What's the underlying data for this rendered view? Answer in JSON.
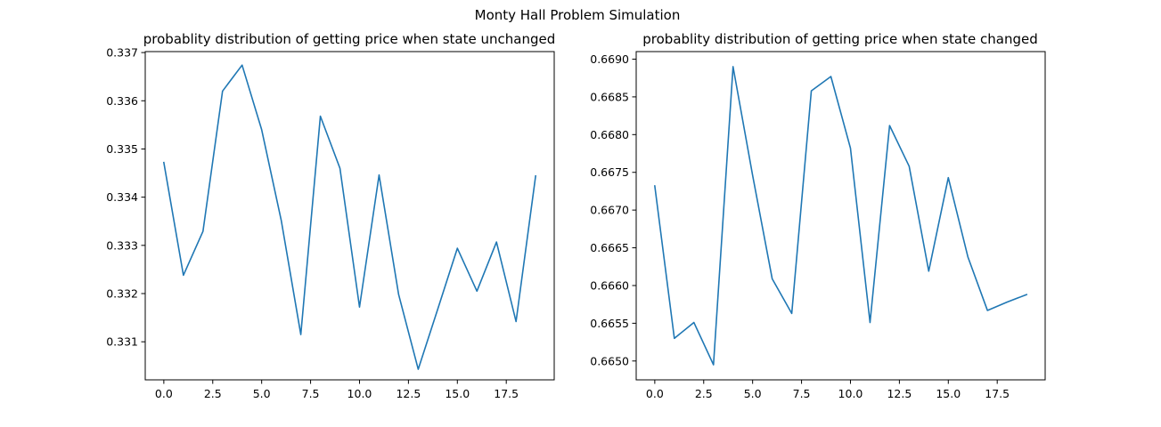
{
  "figure": {
    "suptitle": "Monty Hall Problem Simulation",
    "line_color": "#1f77b4"
  },
  "chart_data": [
    {
      "type": "line",
      "title": "probablity distribution of getting price when state unchanged",
      "xlabel": "",
      "ylabel": "",
      "x": [
        0,
        1,
        2,
        3,
        4,
        5,
        6,
        7,
        8,
        9,
        10,
        11,
        12,
        13,
        14,
        15,
        16,
        17,
        18,
        19
      ],
      "series": [
        {
          "values": [
            0.33472,
            0.33238,
            0.33329,
            0.3362,
            0.33674,
            0.3354,
            0.33352,
            0.33115,
            0.33568,
            0.3346,
            0.33172,
            0.33446,
            0.33198,
            0.33043,
            0.33168,
            0.33294,
            0.33205,
            0.33307,
            0.33142,
            0.33444
          ]
        }
      ],
      "xlim": [
        -0.95,
        19.95
      ],
      "ylim": [
        0.33021,
        0.33702
      ],
      "xticks": [
        0.0,
        2.5,
        5.0,
        7.5,
        10.0,
        12.5,
        15.0,
        17.5
      ],
      "xtick_labels": [
        "0.0",
        "2.5",
        "5.0",
        "7.5",
        "10.0",
        "12.5",
        "15.0",
        "17.5"
      ],
      "yticks": [
        0.331,
        0.332,
        0.333,
        0.334,
        0.335,
        0.336,
        0.337
      ],
      "ytick_labels": [
        "0.331",
        "0.332",
        "0.333",
        "0.334",
        "0.335",
        "0.336",
        "0.337"
      ],
      "grid": false
    },
    {
      "type": "line",
      "title": "probablity distribution of getting price when state changed",
      "xlabel": "",
      "ylabel": "",
      "x": [
        0,
        1,
        2,
        3,
        4,
        5,
        6,
        7,
        8,
        9,
        10,
        11,
        12,
        13,
        14,
        15,
        16,
        17,
        18,
        19
      ],
      "series": [
        {
          "values": [
            0.66732,
            0.6653,
            0.66551,
            0.66495,
            0.6689,
            0.66746,
            0.66609,
            0.66563,
            0.66858,
            0.66877,
            0.66782,
            0.66551,
            0.66812,
            0.66758,
            0.66619,
            0.66743,
            0.66638,
            0.66567,
            0.66578,
            0.66588
          ]
        }
      ],
      "xlim": [
        -0.95,
        19.95
      ],
      "ylim": [
        0.66475,
        0.6691
      ],
      "xticks": [
        0.0,
        2.5,
        5.0,
        7.5,
        10.0,
        12.5,
        15.0,
        17.5
      ],
      "xtick_labels": [
        "0.0",
        "2.5",
        "5.0",
        "7.5",
        "10.0",
        "12.5",
        "15.0",
        "17.5"
      ],
      "yticks": [
        0.665,
        0.6655,
        0.666,
        0.6665,
        0.667,
        0.6675,
        0.668,
        0.6685,
        0.669
      ],
      "ytick_labels": [
        "0.6650",
        "0.6655",
        "0.6660",
        "0.6665",
        "0.6670",
        "0.6675",
        "0.6680",
        "0.6685",
        "0.6690"
      ],
      "grid": false
    }
  ]
}
